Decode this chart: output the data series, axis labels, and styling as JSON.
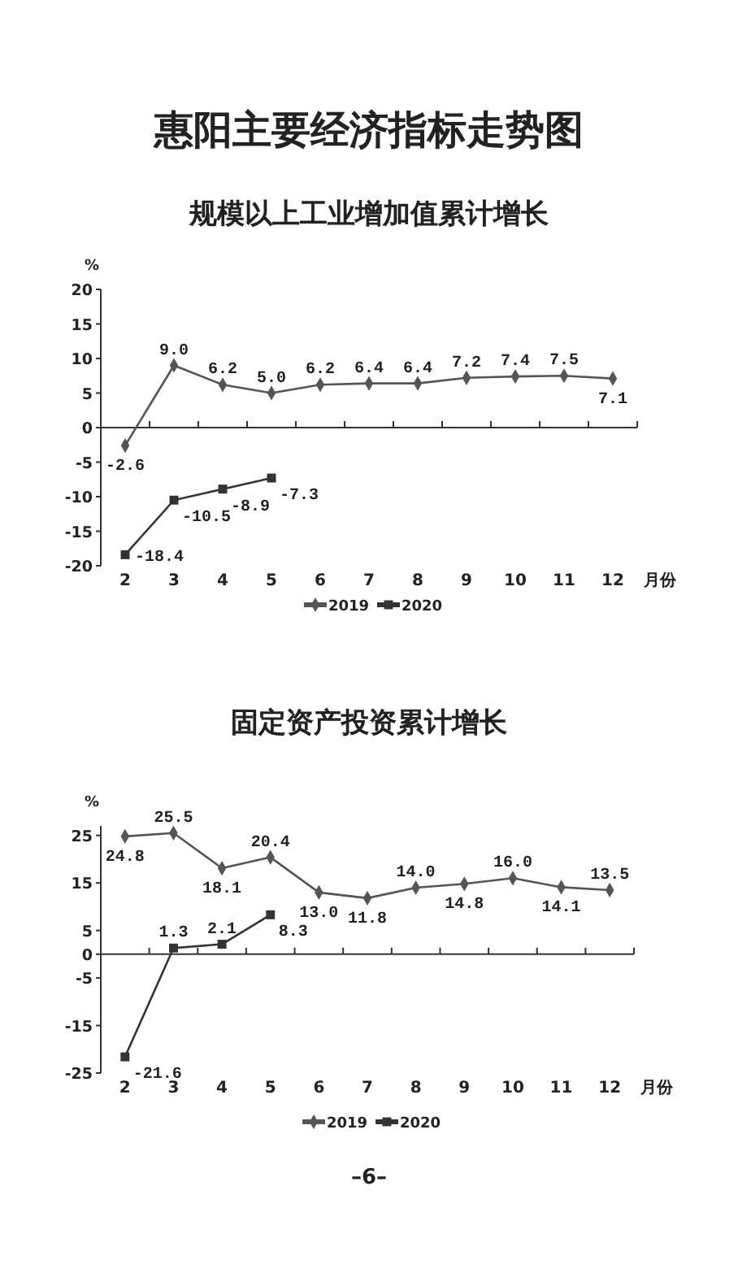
{
  "chart_data": [
    {
      "type": "line",
      "title": "惠阳主要经济指标走势图",
      "subtitle": "规模以上工业增加值累计增长",
      "ylabel": "%",
      "xlabel": "月份",
      "categories": [
        "2",
        "3",
        "4",
        "5",
        "6",
        "7",
        "8",
        "9",
        "10",
        "11",
        "12"
      ],
      "series": [
        {
          "name": "2019",
          "color": "#555555",
          "marker": "diamond",
          "values": [
            -2.6,
            9.0,
            6.2,
            5.0,
            6.2,
            6.4,
            6.4,
            7.2,
            7.4,
            7.5,
            7.1
          ],
          "value_labels": [
            "-2.6",
            "9.0",
            "6.2",
            "5.0",
            "6.2",
            "6.4",
            "6.4",
            "7.2",
            "7.4",
            "7.5",
            "7.1"
          ]
        },
        {
          "name": "2020",
          "color": "#333333",
          "marker": "square",
          "values": [
            -18.4,
            -10.5,
            -8.9,
            -7.3,
            null,
            null,
            null,
            null,
            null,
            null,
            null
          ],
          "value_labels": [
            "-18.4",
            "-10.5",
            "-8.9",
            "-7.3",
            null,
            null,
            null,
            null,
            null,
            null,
            null
          ]
        }
      ],
      "ylim": [
        -20,
        20
      ],
      "yticks": [
        -20,
        -15,
        -10,
        -5,
        0,
        5,
        10,
        15,
        20
      ],
      "legend": "bottom"
    },
    {
      "type": "line",
      "title": "固定资产投资累计增长",
      "ylabel": "%",
      "xlabel": "月份",
      "categories": [
        "2",
        "3",
        "4",
        "5",
        "6",
        "7",
        "8",
        "9",
        "10",
        "11",
        "12"
      ],
      "series": [
        {
          "name": "2019",
          "color": "#555555",
          "marker": "diamond",
          "values": [
            24.8,
            25.5,
            18.1,
            20.4,
            13.0,
            11.8,
            14.0,
            14.8,
            16.0,
            14.1,
            13.5
          ],
          "value_labels": [
            "24.8",
            "25.5",
            "18.1",
            "20.4",
            "13.0",
            "11.8",
            "14.0",
            "14.8",
            "16.0",
            "14.1",
            "13.5"
          ]
        },
        {
          "name": "2020",
          "color": "#333333",
          "marker": "square",
          "values": [
            -21.6,
            1.3,
            2.1,
            8.3,
            null,
            null,
            null,
            null,
            null,
            null,
            null
          ],
          "value_labels": [
            "-21.6",
            "1.3",
            "2.1",
            "8.3",
            null,
            null,
            null,
            null,
            null,
            null,
            null
          ]
        }
      ],
      "ylim": [
        -25,
        27
      ],
      "yticks": [
        -25,
        -15,
        -5,
        0,
        5,
        15,
        25
      ],
      "legend": "bottom",
      "annotations": [
        "–6–"
      ]
    }
  ]
}
